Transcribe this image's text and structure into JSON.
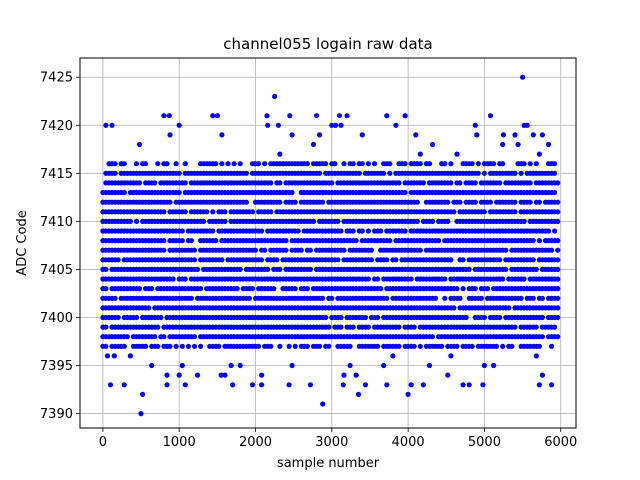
{
  "chart_data": {
    "type": "scatter",
    "title": "channel055 logain raw data",
    "xlabel": "sample number",
    "ylabel": "ADC Code",
    "xlim": [
      -300,
      6200
    ],
    "ylim": [
      7388.5,
      7427.0
    ],
    "xticks": [
      0,
      1000,
      2000,
      3000,
      4000,
      5000,
      6000
    ],
    "yticks": [
      7390,
      7395,
      7400,
      7405,
      7410,
      7415,
      7420,
      7425
    ],
    "grid": true,
    "marker_color": "#0000ff",
    "sample_count": 6000,
    "series": [
      {
        "dense_band": [
          7397,
          7416
        ],
        "common_range": [
          7393,
          7421
        ],
        "x": [
          500,
          520,
          2880,
          5500,
          2250,
          4000,
          4200,
          1700,
          1550,
          800,
          870,
          1000,
          1500,
          2150,
          2800,
          3100,
          3050,
          3200,
          2450,
          2300,
          3400,
          4100,
          4900,
          5250,
          5400,
          100,
          150,
          280,
          60,
          4980,
          3150,
          3350
        ],
        "y": [
          7390,
          7392,
          7391,
          7425,
          7423,
          7392,
          7393,
          7393,
          7394,
          7421,
          7421,
          7420,
          7421,
          7421,
          7421,
          7421,
          7420,
          7421,
          7421,
          7420,
          7419,
          7419,
          7419,
          7419,
          7419,
          7393,
          7396,
          7393,
          7396,
          7393,
          7393,
          7392
        ]
      }
    ]
  }
}
